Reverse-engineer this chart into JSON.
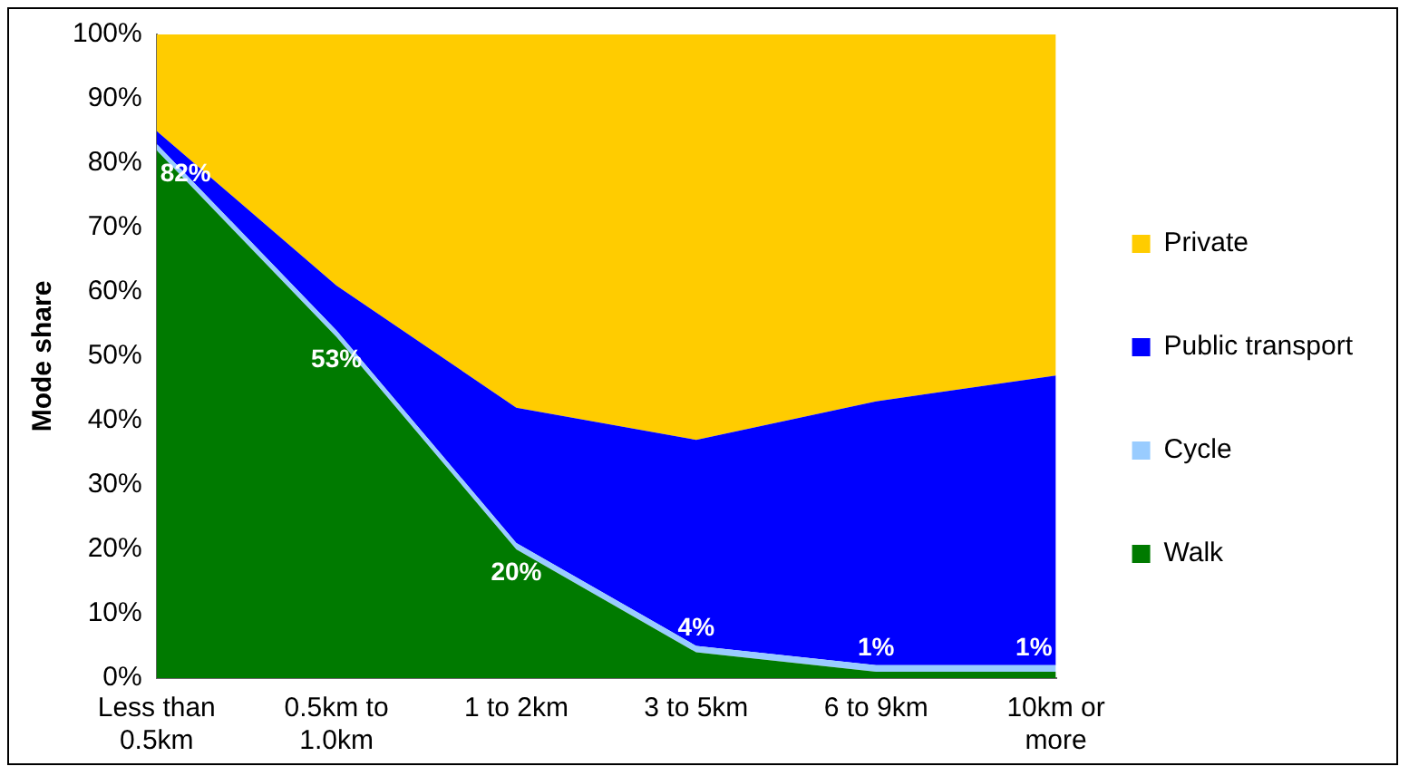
{
  "chart_data": {
    "type": "area",
    "stacked": true,
    "ylabel": "Mode share",
    "categories": [
      "Less than 0.5km",
      "0.5km to 1.0km",
      "1 to 2km",
      "3 to 5km",
      "6 to 9km",
      "10km or more"
    ],
    "series": [
      {
        "name": "Walk",
        "color": "#007a00",
        "values": [
          82,
          53,
          20,
          4,
          1,
          1
        ],
        "value_labels": [
          "82%",
          "53%",
          "20%",
          "4%",
          "1%",
          "1%"
        ]
      },
      {
        "name": "Cycle",
        "color": "#99ccff",
        "values": [
          1,
          1,
          1,
          1,
          1,
          1
        ]
      },
      {
        "name": "Public transport",
        "color": "#0000ff",
        "values": [
          2,
          7,
          21,
          32,
          41,
          45
        ]
      },
      {
        "name": "Private",
        "color": "#ffcc00",
        "values": [
          15,
          39,
          58,
          63,
          57,
          53
        ]
      }
    ],
    "ylim": [
      0,
      100
    ],
    "yticks": [
      {
        "value": 0,
        "label": "0%"
      },
      {
        "value": 10,
        "label": "10%"
      },
      {
        "value": 20,
        "label": "20%"
      },
      {
        "value": 30,
        "label": "30%"
      },
      {
        "value": 40,
        "label": "40%"
      },
      {
        "value": 50,
        "label": "50%"
      },
      {
        "value": 60,
        "label": "60%"
      },
      {
        "value": 70,
        "label": "70%"
      },
      {
        "value": 80,
        "label": "80%"
      },
      {
        "value": 90,
        "label": "90%"
      },
      {
        "value": 100,
        "label": "100%"
      }
    ],
    "grid": false,
    "legend": "right",
    "marker": "none"
  }
}
